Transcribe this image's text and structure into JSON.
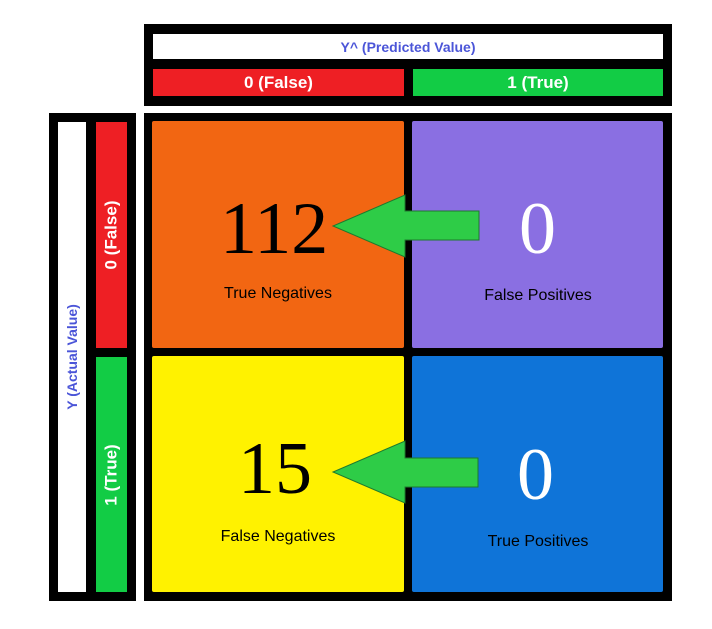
{
  "header": {
    "predicted_title": "Y^ (Predicted Value)",
    "pred_false": "0 (False)",
    "pred_true": "1 (True)"
  },
  "side": {
    "actual_title": "Y (Actual Value)",
    "act_false": "0 (False)",
    "act_true": "1 (True)"
  },
  "cells": {
    "tn": {
      "value": "112",
      "label": "True Negatives"
    },
    "fp": {
      "value": "0",
      "label": "False Positives"
    },
    "fn": {
      "value": "15",
      "label": "False Negatives"
    },
    "tp": {
      "value": "0",
      "label": "True Positives"
    }
  },
  "colors": {
    "header_red": "#ee1f24",
    "header_green": "#12cc45",
    "title_blue": "#4b55d8",
    "tn": "#f26612",
    "fp": "#8a6fe2",
    "fn": "#fff200",
    "tp": "#0f74d8",
    "arrow": "#2ecc47"
  }
}
